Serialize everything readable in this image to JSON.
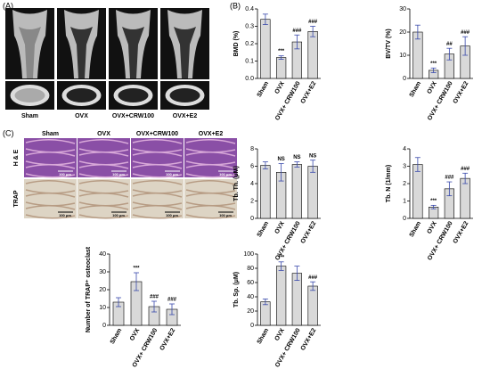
{
  "panels": {
    "a": {
      "label": "(A)",
      "groups": [
        "Sham",
        "OVX",
        "OVX+CRW100",
        "OVX+E2"
      ]
    },
    "b": {
      "label": "(B)"
    },
    "c": {
      "label": "(C)",
      "groups": [
        "Sham",
        "OVX",
        "OVX+CRW100",
        "OVX+E2"
      ],
      "rows": [
        "H & E",
        "TRAP"
      ],
      "scale_bar": "100 μm"
    }
  },
  "chart_data": [
    {
      "type": "bar",
      "ylabel": "BMD (%)",
      "categories": [
        "Sham",
        "OVX",
        "OVX+ CRW100",
        "OVX+E2"
      ],
      "values": [
        0.34,
        0.12,
        0.21,
        0.27
      ],
      "errors": [
        0.03,
        0.01,
        0.04,
        0.03
      ],
      "annotations": [
        null,
        "***",
        "###",
        "###"
      ],
      "color": "#d9d9d9",
      "ylim": [
        0,
        0.4
      ],
      "yticks": [
        {
          "value": 0,
          "label": "0.0"
        },
        0.1,
        0.2,
        0.3,
        0.4
      ]
    },
    {
      "type": "bar",
      "ylabel": "BV/TV (%)",
      "categories": [
        "Sham",
        "OVX",
        "OVX+ CRW100",
        "OVX+E2"
      ],
      "values": [
        20,
        3.5,
        10.5,
        14
      ],
      "errors": [
        3,
        1,
        2.5,
        4
      ],
      "annotations": [
        null,
        "***",
        "##",
        "###"
      ],
      "color": "#d9d9d9",
      "ylim": [
        0,
        30
      ],
      "yticks": [
        0,
        10,
        20,
        30
      ]
    },
    {
      "type": "bar",
      "ylabel": "Tb. Th. (μM)",
      "categories": [
        "Sham",
        "OVX",
        "OVX+ CRW100",
        "OVX+E2"
      ],
      "values": [
        6.1,
        5.3,
        6.2,
        6.0
      ],
      "errors": [
        0.4,
        1.0,
        0.3,
        0.7
      ],
      "annotations": [
        null,
        "NS",
        "NS",
        "NS"
      ],
      "color": "#d9d9d9",
      "ylim": [
        0,
        8
      ],
      "yticks": [
        0,
        2,
        4,
        6,
        8
      ]
    },
    {
      "type": "bar",
      "ylabel": "Tb. N (1/mm)",
      "categories": [
        "Sham",
        "OVX",
        "OVX+ CRW100",
        "OVX+E2"
      ],
      "values": [
        3.1,
        0.65,
        1.7,
        2.3
      ],
      "errors": [
        0.4,
        0.1,
        0.4,
        0.3
      ],
      "annotations": [
        null,
        "***",
        "###",
        "###"
      ],
      "color": "#d9d9d9",
      "ylim": [
        0,
        4
      ],
      "yticks": [
        0,
        1,
        2,
        3,
        4
      ]
    },
    {
      "type": "bar",
      "ylabel": "Tb. Sp. (μM)",
      "categories": [
        "Sham",
        "OVX",
        "OVX+ CRW100",
        "OVX+E2"
      ],
      "values": [
        33,
        83,
        73,
        55
      ],
      "errors": [
        4,
        6,
        10,
        6
      ],
      "annotations": [
        null,
        "***",
        null,
        "###"
      ],
      "color": "#d9d9d9",
      "ylim": [
        0,
        100
      ],
      "yticks": [
        0,
        20,
        40,
        60,
        80,
        100
      ]
    },
    {
      "type": "bar",
      "ylabel": "Number of TRAP⁺ osteoclast",
      "categories": [
        "Sham",
        "OVX",
        "OVX+ CRW100",
        "OVX+E2"
      ],
      "values": [
        13,
        24.5,
        10.5,
        9
      ],
      "errors": [
        2.5,
        5,
        3,
        3
      ],
      "annotations": [
        null,
        "***",
        "###",
        "###"
      ],
      "color": "#d9d9d9",
      "ylim": [
        0,
        40
      ],
      "yticks": [
        0,
        10,
        20,
        30,
        40
      ]
    }
  ]
}
